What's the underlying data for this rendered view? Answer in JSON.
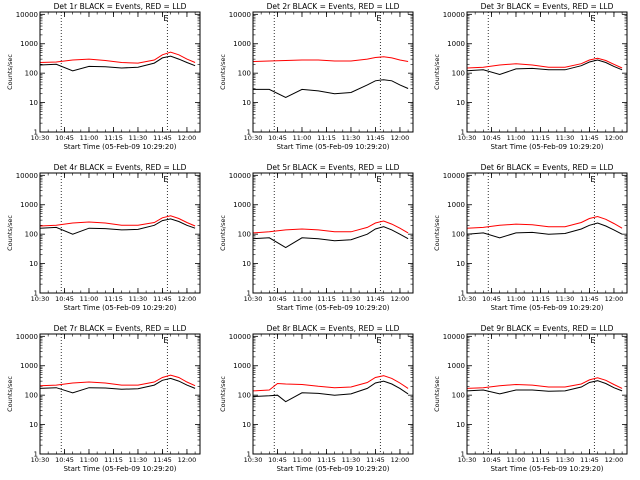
{
  "figure": {
    "xlabel": "Start Time (05-Feb-09 10:29:20)",
    "ylabel": "Counts/sec",
    "xtick_labels": [
      "10:30",
      "10:45",
      "11:00",
      "11:15",
      "11:30",
      "11:45",
      "12:00"
    ],
    "ytick_labels": [
      "1",
      "10",
      "100",
      "1000",
      "10000"
    ],
    "marker_label": "E",
    "dotted_markers": [
      "10:43",
      "11:48"
    ],
    "colors": {
      "events": "#000000",
      "lld": "#ff0000",
      "axes": "#000000",
      "background": "#ffffff"
    }
  },
  "chart_data": [
    {
      "type": "line",
      "title": "Det 1r BLACK = Events, RED = LLD",
      "x": [
        "10:30",
        "10:40",
        "10:50",
        "11:00",
        "11:10",
        "11:20",
        "11:30",
        "11:40",
        "11:45",
        "11:50",
        "11:55",
        "12:00",
        "12:05"
      ],
      "series": [
        {
          "name": "Events",
          "values": [
            190,
            200,
            120,
            170,
            165,
            150,
            160,
            220,
            330,
            380,
            300,
            230,
            180
          ]
        },
        {
          "name": "LLD",
          "values": [
            230,
            240,
            280,
            300,
            270,
            230,
            220,
            280,
            420,
            520,
            420,
            300,
            230
          ]
        }
      ],
      "xlim": [
        "10:30",
        "12:08"
      ],
      "ylim": [
        1,
        12000
      ],
      "yscale": "log"
    },
    {
      "type": "line",
      "title": "Det 2r BLACK = Events, RED = LLD",
      "x": [
        "10:30",
        "10:40",
        "10:50",
        "11:00",
        "11:10",
        "11:20",
        "11:30",
        "11:40",
        "11:45",
        "11:50",
        "11:55",
        "12:00",
        "12:05"
      ],
      "series": [
        {
          "name": "Events",
          "values": [
            28,
            28,
            15,
            28,
            25,
            20,
            22,
            40,
            55,
            60,
            55,
            40,
            30
          ]
        },
        {
          "name": "LLD",
          "values": [
            250,
            260,
            270,
            280,
            280,
            260,
            260,
            300,
            340,
            360,
            330,
            280,
            250
          ]
        }
      ],
      "xlim": [
        "10:30",
        "12:08"
      ],
      "ylim": [
        1,
        12000
      ],
      "yscale": "log"
    },
    {
      "type": "line",
      "title": "Det 3r BLACK = Events, RED = LLD",
      "x": [
        "10:30",
        "10:40",
        "10:50",
        "11:00",
        "11:10",
        "11:20",
        "11:30",
        "11:40",
        "11:45",
        "11:50",
        "11:55",
        "12:00",
        "12:05"
      ],
      "series": [
        {
          "name": "Events",
          "values": [
            120,
            130,
            90,
            140,
            145,
            130,
            130,
            180,
            240,
            280,
            230,
            170,
            130
          ]
        },
        {
          "name": "LLD",
          "values": [
            150,
            160,
            190,
            210,
            190,
            160,
            160,
            210,
            280,
            320,
            270,
            200,
            150
          ]
        }
      ],
      "xlim": [
        "10:30",
        "12:08"
      ],
      "ylim": [
        1,
        12000
      ],
      "yscale": "log"
    },
    {
      "type": "line",
      "title": "Det 4r BLACK = Events, RED = LLD",
      "x": [
        "10:30",
        "10:40",
        "10:50",
        "11:00",
        "11:10",
        "11:20",
        "11:30",
        "11:40",
        "11:45",
        "11:50",
        "11:55",
        "12:00",
        "12:05"
      ],
      "series": [
        {
          "name": "Events",
          "values": [
            160,
            170,
            100,
            160,
            155,
            140,
            145,
            200,
            290,
            330,
            270,
            200,
            160
          ]
        },
        {
          "name": "LLD",
          "values": [
            190,
            200,
            240,
            260,
            240,
            200,
            200,
            250,
            360,
            420,
            340,
            250,
            190
          ]
        }
      ],
      "xlim": [
        "10:30",
        "12:08"
      ],
      "ylim": [
        1,
        12000
      ],
      "yscale": "log"
    },
    {
      "type": "line",
      "title": "Det 5r BLACK = Events, RED = LLD",
      "x": [
        "10:30",
        "10:40",
        "10:50",
        "11:00",
        "11:10",
        "11:20",
        "11:30",
        "11:40",
        "11:45",
        "11:50",
        "11:55",
        "12:00",
        "12:05"
      ],
      "series": [
        {
          "name": "Events",
          "values": [
            70,
            75,
            35,
            75,
            70,
            60,
            65,
            100,
            150,
            180,
            140,
            100,
            70
          ]
        },
        {
          "name": "LLD",
          "values": [
            110,
            120,
            140,
            150,
            140,
            120,
            120,
            170,
            240,
            280,
            220,
            160,
            110
          ]
        }
      ],
      "xlim": [
        "10:30",
        "12:08"
      ],
      "ylim": [
        1,
        12000
      ],
      "yscale": "log"
    },
    {
      "type": "line",
      "title": "Det 6r BLACK = Events, RED = LLD",
      "x": [
        "10:30",
        "10:40",
        "10:50",
        "11:00",
        "11:10",
        "11:20",
        "11:30",
        "11:40",
        "11:45",
        "11:50",
        "11:55",
        "12:00",
        "12:05"
      ],
      "series": [
        {
          "name": "Events",
          "values": [
            100,
            110,
            75,
            110,
            115,
            100,
            105,
            150,
            200,
            240,
            190,
            140,
            100
          ]
        },
        {
          "name": "LLD",
          "values": [
            160,
            170,
            200,
            220,
            210,
            180,
            180,
            250,
            340,
            400,
            320,
            230,
            160
          ]
        }
      ],
      "xlim": [
        "10:30",
        "12:08"
      ],
      "ylim": [
        1,
        12000
      ],
      "yscale": "log"
    },
    {
      "type": "line",
      "title": "Det 7r BLACK = Events, RED = LLD",
      "x": [
        "10:30",
        "10:40",
        "10:50",
        "11:00",
        "11:10",
        "11:20",
        "11:30",
        "11:40",
        "11:45",
        "11:50",
        "11:55",
        "12:00",
        "12:05"
      ],
      "series": [
        {
          "name": "Events",
          "values": [
            170,
            180,
            120,
            180,
            175,
            160,
            165,
            220,
            320,
            370,
            300,
            220,
            170
          ]
        },
        {
          "name": "LLD",
          "values": [
            210,
            220,
            260,
            280,
            260,
            220,
            220,
            280,
            400,
            480,
            400,
            280,
            210
          ]
        }
      ],
      "xlim": [
        "10:30",
        "12:08"
      ],
      "ylim": [
        1,
        12000
      ],
      "yscale": "log"
    },
    {
      "type": "line",
      "title": "Det 8r BLACK = Events, RED = LLD",
      "x": [
        "10:30",
        "10:40",
        "10:45",
        "10:50",
        "11:00",
        "11:10",
        "11:20",
        "11:30",
        "11:40",
        "11:45",
        "11:50",
        "11:55",
        "12:00",
        "12:05"
      ],
      "series": [
        {
          "name": "Events",
          "values": [
            90,
            95,
            100,
            60,
            120,
            115,
            100,
            110,
            170,
            260,
            300,
            240,
            170,
            110
          ]
        },
        {
          "name": "LLD",
          "values": [
            140,
            150,
            250,
            240,
            230,
            200,
            180,
            190,
            270,
            400,
            460,
            370,
            260,
            170
          ]
        }
      ],
      "xlim": [
        "10:30",
        "12:08"
      ],
      "ylim": [
        1,
        12000
      ],
      "yscale": "log"
    },
    {
      "type": "line",
      "title": "Det 9r BLACK = Events, RED = LLD",
      "x": [
        "10:30",
        "10:40",
        "10:50",
        "11:00",
        "11:10",
        "11:20",
        "11:30",
        "11:40",
        "11:45",
        "11:50",
        "11:55",
        "12:00",
        "12:05"
      ],
      "series": [
        {
          "name": "Events",
          "values": [
            140,
            150,
            110,
            150,
            150,
            135,
            140,
            190,
            270,
            310,
            250,
            180,
            140
          ]
        },
        {
          "name": "LLD",
          "values": [
            170,
            180,
            210,
            230,
            220,
            190,
            190,
            240,
            330,
            390,
            320,
            230,
            170
          ]
        }
      ],
      "xlim": [
        "10:30",
        "12:08"
      ],
      "ylim": [
        1,
        12000
      ],
      "yscale": "log"
    }
  ]
}
